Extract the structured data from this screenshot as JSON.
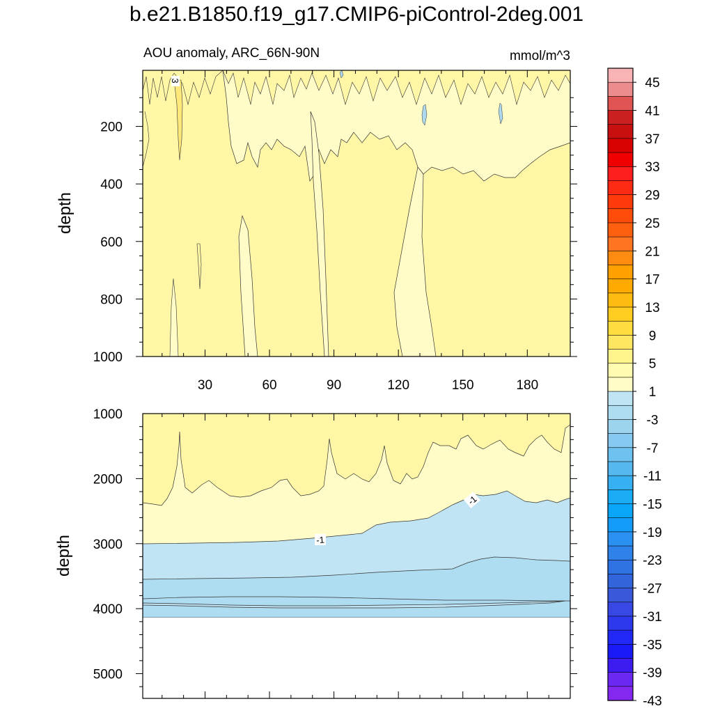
{
  "title": "b.e21.B1850.f19_g17.CMIP6-piControl-2deg.001",
  "colors": {
    "frame": "#000000",
    "contour_line": "#333333",
    "missing": "#ffffff"
  },
  "chart_data": [
    {
      "type": "heatmap",
      "panel": "upper",
      "left_label": "AOU anomaly, ARC_66N-90N",
      "right_label": "mmol/m^3",
      "xlabel": "",
      "ylabel": "depth",
      "xlim": [
        1,
        200
      ],
      "ylim": [
        1000,
        5
      ],
      "y_inverted": true,
      "x_ticks": [
        30,
        60,
        90,
        120,
        150,
        180
      ],
      "x_tick_labels": [
        "30",
        "60",
        "90",
        "120",
        "150",
        "180"
      ],
      "y_ticks": [
        200,
        400,
        600,
        800,
        1000
      ],
      "y_tick_labels": [
        "200",
        "400",
        "600",
        "800",
        "1000"
      ],
      "contour_labels": [
        {
          "text": "3",
          "x": 16,
          "y": 40
        }
      ],
      "background_value": 2,
      "regions": [
        {
          "value": 0,
          "note": "shallow band 150–320 m, x 35–75 and 130–200"
        },
        {
          "value": 0,
          "note": "narrow column x 45–55, depth 470–1000"
        },
        {
          "value": 0,
          "note": "narrow column x 77–87, depth 100–1000"
        },
        {
          "value": 0,
          "note": "column x 120–137, depth 100–1000"
        },
        {
          "value": 4,
          "note": "thin streak near x 16, depth 20–250"
        },
        {
          "value": -2,
          "note": "small patches near x 92, 131, 169 at ~200 m"
        }
      ]
    },
    {
      "type": "heatmap",
      "panel": "lower",
      "xlabel": "",
      "ylabel": "depth",
      "xlim": [
        1,
        200
      ],
      "ylim": [
        5380,
        1000
      ],
      "y_inverted": true,
      "y_ticks": [
        1000,
        2000,
        3000,
        4000,
        5000
      ],
      "y_tick_labels": [
        "1000",
        "2000",
        "3000",
        "4000",
        "5000"
      ],
      "data_bottom_depth": 4120,
      "contour_labels": [
        {
          "text": "-1",
          "x": 82,
          "y": 2980
        },
        {
          "text": "-1",
          "x": 153,
          "y": 2330
        }
      ],
      "layers": [
        {
          "value": 2,
          "depth_range": [
            1000,
            2400
          ],
          "note": "upper lobes, deepest near x 20"
        },
        {
          "value": 0,
          "depth_range": [
            1600,
            3000
          ],
          "note": "band above -1 contour"
        },
        {
          "value": -2,
          "depth_range": [
            2300,
            4120
          ],
          "note": "boundary rising from 3000 m at x 1 to 2300 m at x 200"
        },
        {
          "value": -4,
          "depth_range": [
            3200,
            3900
          ],
          "note": "contour from 3550 m at left to 3200 m at right"
        }
      ]
    }
  ],
  "colorbar": {
    "levels_top_to_bottom": [
      "45",
      "41",
      "37",
      "33",
      "29",
      "25",
      "21",
      "17",
      "13",
      "9",
      "5",
      "1",
      "-3",
      "-7",
      "-11",
      "-15",
      "-19",
      "-23",
      "-27",
      "-31",
      "-35",
      "-39",
      "-43"
    ],
    "colors_top_to_bottom": [
      "#f8b4b4",
      "#ec8c8c",
      "#e05454",
      "#cc2020",
      "#c81010",
      "#d80000",
      "#f00000",
      "#ff1e1e",
      "#ff2a14",
      "#ff3a0a",
      "#ff4c0a",
      "#ff6010",
      "#ff7420",
      "#ff8c10",
      "#ffa000",
      "#ffaa00",
      "#ffbc10",
      "#ffcc20",
      "#ffdc40",
      "#ffe660",
      "#fff38c",
      "#fffbb0",
      "#fffcc8",
      "#c0e4f4",
      "#aedcf0",
      "#9cd4ee",
      "#86caf2",
      "#6ec2f0",
      "#56b8ee",
      "#36b0f0",
      "#1aacf4",
      "#0aa6fa",
      "#149af8",
      "#2a90f2",
      "#2e82ea",
      "#2f72e4",
      "#3264dc",
      "#3a58da",
      "#3848e4",
      "#2e38ec",
      "#2228f6",
      "#1a1af8",
      "#3c1cf0",
      "#6a28f0",
      "#8428f0"
    ]
  }
}
